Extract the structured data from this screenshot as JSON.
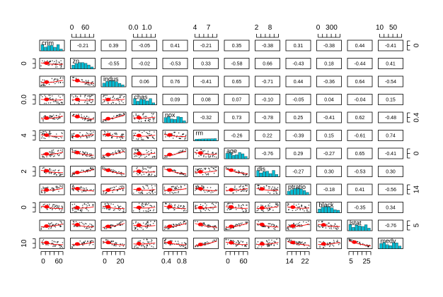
{
  "chart_data": {
    "type": "scatter-matrix",
    "variables": [
      "crim",
      "zn",
      "indus",
      "chas",
      "nox",
      "rm",
      "age",
      "dis",
      "ptratio",
      "black",
      "lstat",
      "medv"
    ],
    "correlations": [
      [
        null,
        "-0.21",
        "0.39",
        "-0.05",
        "0.41",
        "-0.21",
        "0.35",
        "-0.38",
        "0.31",
        "-0.38",
        "0.44",
        "-0.41"
      ],
      [
        null,
        null,
        "-0.55",
        "-0.02",
        "-0.53",
        "0.33",
        "-0.58",
        "0.66",
        "-0.43",
        "0.18",
        "-0.44",
        "0.41"
      ],
      [
        null,
        null,
        null,
        "0.06",
        "0.76",
        "-0.41",
        "0.65",
        "-0.71",
        "0.44",
        "-0.36",
        "0.64",
        "-0.54"
      ],
      [
        null,
        null,
        null,
        null,
        "0.09",
        "0.08",
        "0.07",
        "-0.10",
        "-0.05",
        "0.04",
        "-0.04",
        "0.15"
      ],
      [
        null,
        null,
        null,
        null,
        null,
        "-0.32",
        "0.73",
        "-0.78",
        "0.25",
        "-0.41",
        "0.62",
        "-0.48"
      ],
      [
        null,
        null,
        null,
        null,
        null,
        null,
        "-0.26",
        "0.22",
        "-0.39",
        "0.15",
        "-0.61",
        "0.74"
      ],
      [
        null,
        null,
        null,
        null,
        null,
        null,
        null,
        "-0.76",
        "0.29",
        "-0.27",
        "0.65",
        "-0.41"
      ],
      [
        null,
        null,
        null,
        null,
        null,
        null,
        null,
        null,
        "-0.27",
        "0.30",
        "-0.53",
        "0.30"
      ],
      [
        null,
        null,
        null,
        null,
        null,
        null,
        null,
        null,
        null,
        "-0.18",
        "0.41",
        "-0.56"
      ],
      [
        null,
        null,
        null,
        null,
        null,
        null,
        null,
        null,
        null,
        null,
        "-0.35",
        "0.34"
      ],
      [
        null,
        null,
        null,
        null,
        null,
        null,
        null,
        null,
        null,
        null,
        null,
        "-0.76"
      ],
      [
        null,
        null,
        null,
        null,
        null,
        null,
        null,
        null,
        null,
        null,
        null,
        null
      ]
    ],
    "top_axis": [
      {
        "col": 1,
        "labels": [
          "0",
          "60"
        ]
      },
      {
        "col": 3,
        "labels": [
          "0.0",
          "1.0"
        ]
      },
      {
        "col": 5,
        "labels": [
          "4",
          "7"
        ]
      },
      {
        "col": 7,
        "labels": [
          "2",
          "8"
        ]
      },
      {
        "col": 9,
        "labels": [
          "0",
          "300"
        ]
      },
      {
        "col": 11,
        "labels": [
          "10",
          "50"
        ]
      }
    ],
    "bottom_axis": [
      {
        "col": 0,
        "labels": [
          "0",
          "60"
        ]
      },
      {
        "col": 2,
        "labels": [
          "0",
          "20"
        ]
      },
      {
        "col": 4,
        "labels": [
          "0.4",
          "0.8"
        ]
      },
      {
        "col": 6,
        "labels": [
          "0",
          "60"
        ]
      },
      {
        "col": 8,
        "labels": [
          "14",
          "22"
        ]
      },
      {
        "col": 10,
        "labels": [
          "5",
          "25"
        ]
      }
    ],
    "left_axis": [
      {
        "row": 1,
        "label": "0"
      },
      {
        "row": 3,
        "label": "0.0"
      },
      {
        "row": 5,
        "label": "4"
      },
      {
        "row": 7,
        "label": "2"
      },
      {
        "row": 9,
        "label": "0"
      },
      {
        "row": 11,
        "label": "10"
      }
    ],
    "right_axis": [
      {
        "row": 0,
        "label": "0"
      },
      {
        "row": 4,
        "label": "0.4"
      },
      {
        "row": 6,
        "label": "0"
      },
      {
        "row": 8,
        "label": "14"
      },
      {
        "row": 10,
        "label": "5"
      }
    ],
    "colors": {
      "points": "#000000",
      "smooth": "#ff0000",
      "hist": "#00bcd4",
      "frame": "#000000"
    }
  }
}
